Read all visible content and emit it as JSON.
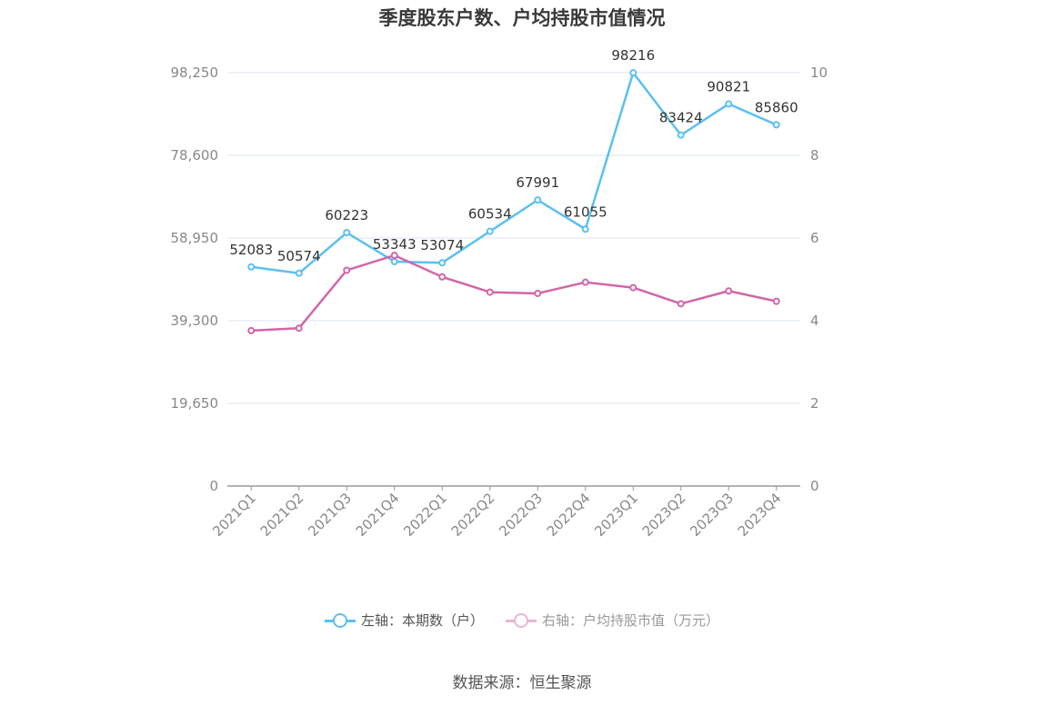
{
  "chart_data": {
    "type": "line",
    "title": "季度股东户数、户均持股市值情况",
    "categories": [
      "2021Q1",
      "2021Q2",
      "2021Q3",
      "2021Q4",
      "2022Q1",
      "2022Q2",
      "2022Q3",
      "2022Q4",
      "2023Q1",
      "2023Q2",
      "2023Q3",
      "2023Q4"
    ],
    "left_axis": {
      "ticks": [
        "0",
        "19,650",
        "39,300",
        "58,950",
        "78,600",
        "98,250"
      ],
      "ylim": [
        0,
        98250
      ]
    },
    "right_axis": {
      "ticks": [
        "0",
        "2",
        "4",
        "6",
        "8",
        "10"
      ],
      "ylim": [
        0,
        10
      ]
    },
    "series": [
      {
        "name": "左轴：本期数（户）",
        "axis": "left",
        "color": "#5bc0f0",
        "values": [
          52083,
          50574,
          60223,
          53343,
          53074,
          60534,
          67991,
          61055,
          98216,
          83424,
          90821,
          85860
        ],
        "labels": [
          "52083",
          "50574",
          "60223",
          "53343",
          "53074",
          "60534",
          "67991",
          "61055",
          "98216",
          "83424",
          "90821",
          "85860"
        ]
      },
      {
        "name": "右轴：户均持股市值（万元）",
        "axis": "right",
        "color": "#d066a8",
        "values": [
          3.76,
          3.82,
          5.22,
          5.58,
          5.06,
          4.69,
          4.66,
          4.93,
          4.8,
          4.41,
          4.72,
          4.47
        ]
      }
    ],
    "grid": true,
    "legend_position": "bottom"
  },
  "source": "数据来源：恒生聚源"
}
